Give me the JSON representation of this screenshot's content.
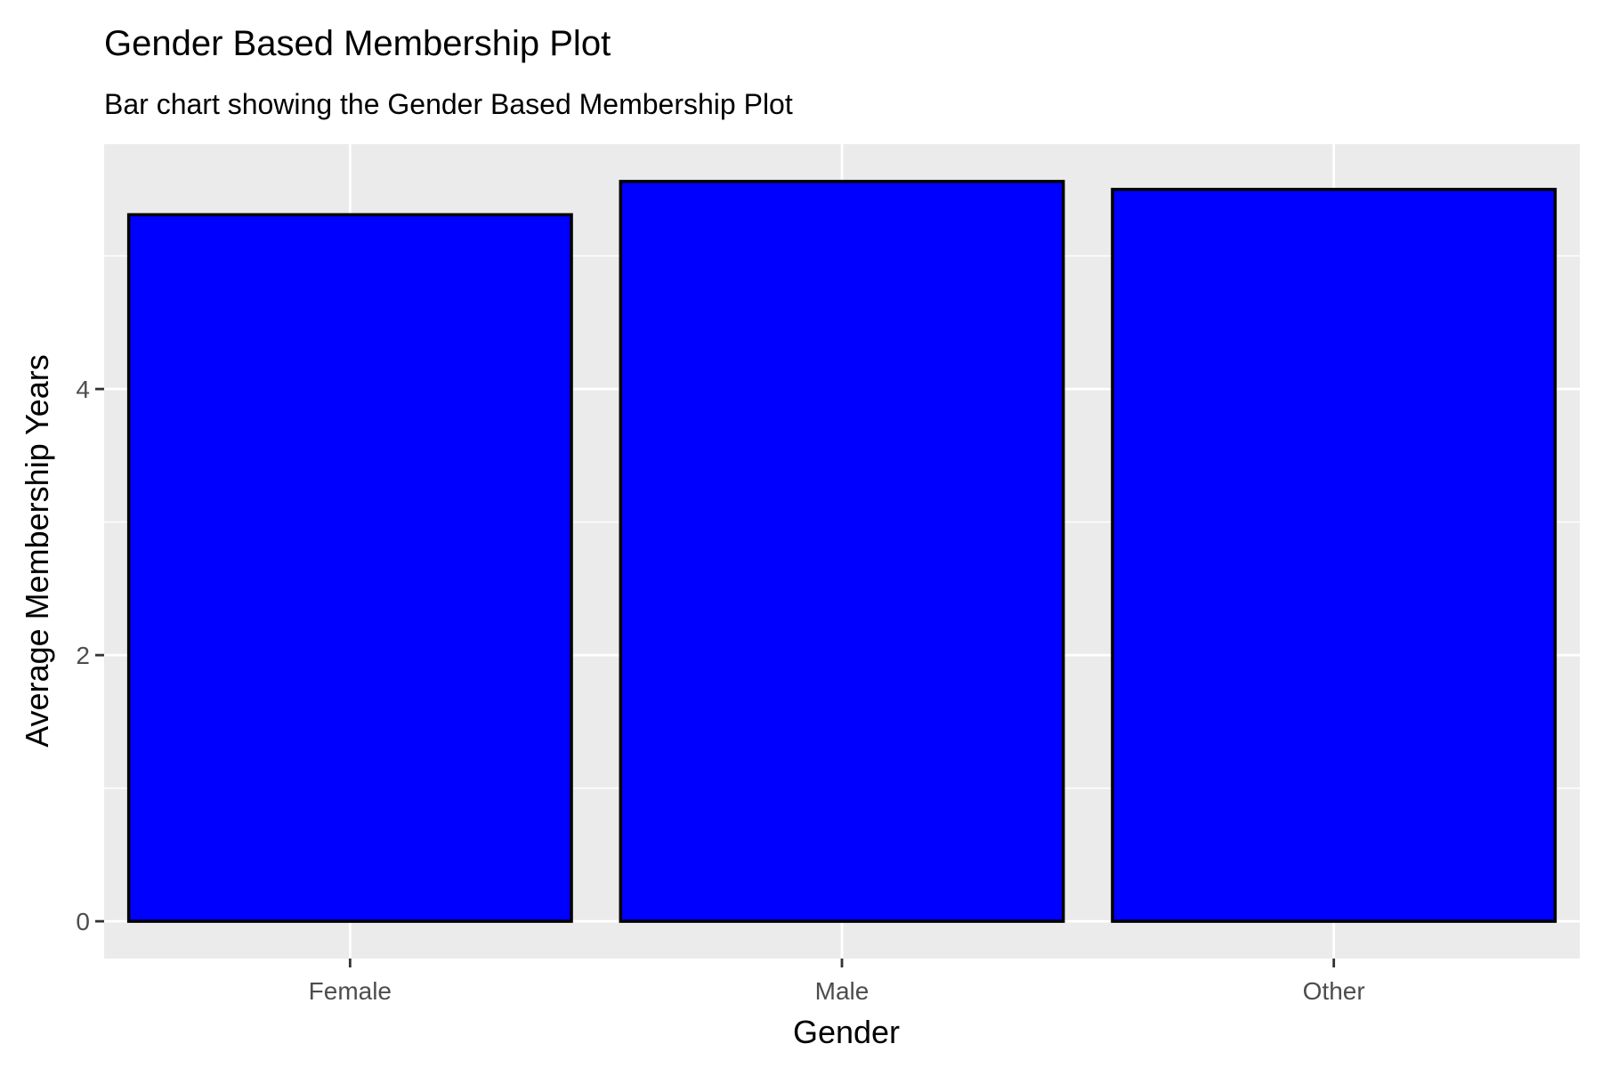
{
  "chart_data": {
    "type": "bar",
    "title": "Gender Based Membership Plot",
    "subtitle": "Bar chart showing the Gender Based Membership Plot",
    "xlabel": "Gender",
    "ylabel": "Average Membership Years",
    "categories": [
      "Female",
      "Male",
      "Other"
    ],
    "values": [
      5.31,
      5.56,
      5.5
    ],
    "ylim": [
      -0.28,
      5.84
    ],
    "yticks": [
      0,
      2,
      4
    ],
    "grid": true,
    "legend": "none",
    "colors": {
      "bar_fill": "#0000ff",
      "bar_stroke": "#000000",
      "panel_bg": "#ebebeb",
      "grid": "#ffffff",
      "tick": "#333333"
    }
  }
}
